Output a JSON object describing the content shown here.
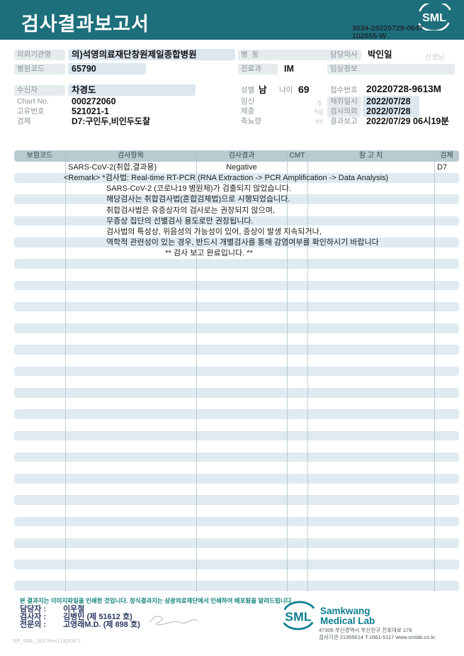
{
  "header": {
    "title": "검사결과보고서",
    "logo_text": "SML",
    "barcode_line1": "3034-20220729-0647",
    "barcode_line2": "102055-W"
  },
  "info": {
    "left": [
      {
        "label": "의뢰기관명",
        "value": "의)석영의료재단창원제일종합병원"
      },
      {
        "label": "병원코드",
        "value": "65790"
      },
      {
        "label": "수신자",
        "value": "차경도"
      },
      {
        "label": "Chart No.",
        "value": "000272060"
      },
      {
        "label": "고유번호",
        "value": "521021-1"
      },
      {
        "label": "검체",
        "value": "D7:구인두,비인두도찰"
      }
    ],
    "middle": {
      "ward_label": "병  동",
      "ward_value": "",
      "dept_label": "진료과",
      "dept_value": "IM",
      "sex_label": "성별",
      "sex_value": "남",
      "age_label": "나이",
      "age_value": "69",
      "pregnancy_label": "임신",
      "pregnancy_unit": "주",
      "weight_label": "체중",
      "weight_unit": "Kg",
      "urine_label": "축뇨량",
      "urine_unit": "ml"
    },
    "right": [
      {
        "label": "담당의사",
        "value": "박인일",
        "suffix": "선생님"
      },
      {
        "label": "임상정보",
        "value": ""
      },
      {
        "label": "접수번호",
        "value": "20220728-9613M"
      },
      {
        "label": "채취일시",
        "value": "2022/07/28"
      },
      {
        "label": "검사의뢰",
        "value": "2022/07/28"
      },
      {
        "label": "결과보고",
        "value": "2022/07/29 06시19분"
      }
    ]
  },
  "table": {
    "headers": [
      "보험코드",
      "검사항목",
      "검사결과",
      "CMT",
      "참 고 치",
      "검체"
    ],
    "result_row": {
      "name": "SARS-CoV-2(취합,결과용)",
      "result": "Negative",
      "cmt": "",
      "reference": "",
      "specimen": "D7"
    },
    "remark_line": "<Remark> *검사법: Real-time RT-PCR (RNA Extraction -> PCR Amplification -> Data Analysis)",
    "note_lines": [
      "SARS-CoV-2 (코로나19 병원체)가 검출되지 않았습니다.",
      "해당검사는 취합검사법(혼합검체법)으로 시행되었습니다.",
      "취합검사법은 유증상자의 검사로는 권장되지 않으며,",
      "무증상 집단의 선별검사 용도로만 권장됩니다.",
      "검사법의 특성상, 위음성의 가능성이 있어, 증상이 발생 지속되거나,",
      "역학적 관련성이 있는 경우, 반드시 개별검사를 통해 감염여부를 확인하시기 바랍니다"
    ],
    "complete_line": "** 검사 보고 완료입니다. **"
  },
  "footer": {
    "notice": "본 결과지는 이미지파일을 인쇄한 것입니다. 정식결과지는 삼광의료재단에서 인쇄하여 배포됨을 알려드립니다",
    "staff": [
      {
        "label": "담당자 :",
        "value": "이우철"
      },
      {
        "label": "검사자 :",
        "value": "김병민 (제 51612 호)"
      },
      {
        "label": "전문의 :",
        "value": "고영래M.D. (제 898 호)"
      }
    ],
    "doc_code": "RP_SML_001 Rev.(13)209.1",
    "logo_text": "SML",
    "company_line1": "Samkwang",
    "company_line2": "Medical Lab",
    "address_line1": "47305 부산광역시 부산진구 전포대로 178",
    "address_line2": "검사기관 21355614 T.1661-5117 www.smlab.co.kr"
  },
  "colors": {
    "band_teal": "#1e6f7c",
    "logo_teal": "#0d7f91",
    "stripe_blue": "#dfeaf1",
    "header_cell": "#b9cbd1",
    "notice_teal": "#13857b",
    "staff_navy": "#2c3a64"
  }
}
